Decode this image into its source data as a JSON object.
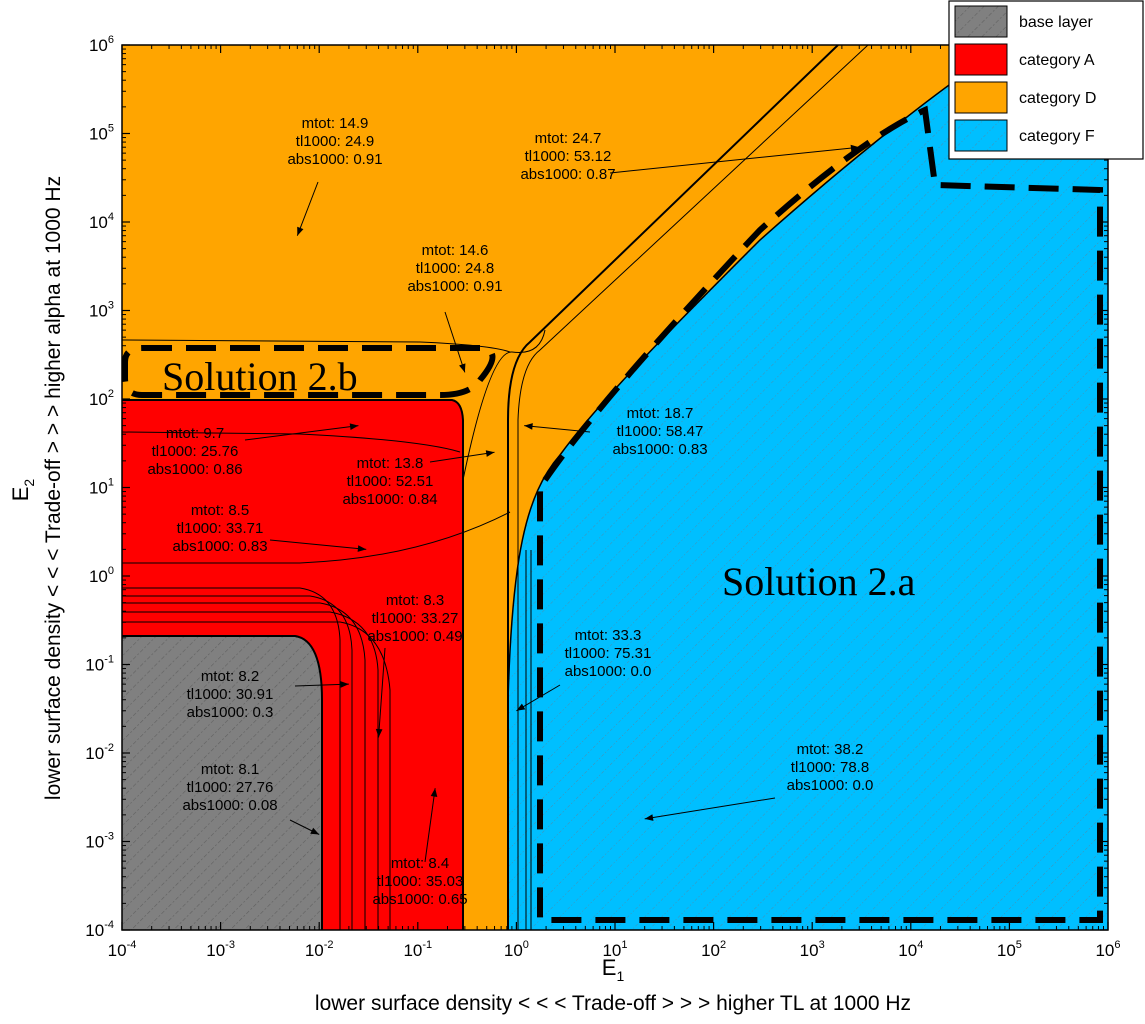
{
  "chart_data": {
    "type": "area",
    "title": "",
    "xlabel": "E",
    "xlabel_sub": "1",
    "xlabel_desc": "lower surface density < < <  Trade-off > > >  higher TL at 1000 Hz",
    "ylabel": "E",
    "ylabel_sub": "2",
    "ylabel_desc": "lower surface density < < <  Trade-off > > >  higher alpha at 1000 Hz",
    "x_scale": "log",
    "y_scale": "log",
    "xlim": [
      0.0001,
      1000000
    ],
    "ylim": [
      0.0001,
      1000000
    ],
    "x_ticks": [
      {
        "base": "10",
        "exp": "-4"
      },
      {
        "base": "10",
        "exp": "-3"
      },
      {
        "base": "10",
        "exp": "-2"
      },
      {
        "base": "10",
        "exp": "-1"
      },
      {
        "base": "10",
        "exp": "0"
      },
      {
        "base": "10",
        "exp": "1"
      },
      {
        "base": "10",
        "exp": "2"
      },
      {
        "base": "10",
        "exp": "3"
      },
      {
        "base": "10",
        "exp": "4"
      },
      {
        "base": "10",
        "exp": "5"
      },
      {
        "base": "10",
        "exp": "6"
      }
    ],
    "y_ticks": [
      {
        "base": "10",
        "exp": "-4"
      },
      {
        "base": "10",
        "exp": "-3"
      },
      {
        "base": "10",
        "exp": "-2"
      },
      {
        "base": "10",
        "exp": "-1"
      },
      {
        "base": "10",
        "exp": "0"
      },
      {
        "base": "10",
        "exp": "1"
      },
      {
        "base": "10",
        "exp": "2"
      },
      {
        "base": "10",
        "exp": "3"
      },
      {
        "base": "10",
        "exp": "4"
      },
      {
        "base": "10",
        "exp": "5"
      },
      {
        "base": "10",
        "exp": "6"
      }
    ],
    "grid": false,
    "legend_position": "top-right",
    "legend": [
      {
        "label": "base layer",
        "color": "#808080",
        "hatched": true
      },
      {
        "label": "category A",
        "color": "#ff0000",
        "hatched": false
      },
      {
        "label": "category D",
        "color": "#ffa500",
        "hatched": false
      },
      {
        "label": "category F",
        "color": "#00bfff",
        "hatched": true
      }
    ],
    "regions": [
      {
        "label": "base layer",
        "x_max": 0.012,
        "y_max": 0.2
      },
      {
        "label": "category A",
        "x_max": 0.3,
        "y_max": 100
      },
      {
        "label": "category F",
        "x_min": 1.2,
        "boundary": "upper-left edge follows roughly E2 ≈ E1 up to the top right corner"
      }
    ],
    "annotations": [
      {
        "lines": [
          "mtot: 14.9",
          "tl1000: 24.9",
          "abs1000: 0.91"
        ],
        "point": [
          0.006,
          7000
        ]
      },
      {
        "lines": [
          "mtot: 24.7",
          "tl1000: 53.12",
          "abs1000: 0.87"
        ],
        "point": [
          3000,
          70000
        ]
      },
      {
        "lines": [
          "mtot: 14.6",
          "tl1000: 24.8",
          "abs1000: 0.91"
        ],
        "point": [
          0.3,
          200
        ]
      },
      {
        "lines": [
          "mtot: 9.7",
          "tl1000: 25.76",
          "abs1000: 0.86"
        ],
        "point": [
          0.025,
          50
        ]
      },
      {
        "lines": [
          "mtot: 13.8",
          "tl1000: 52.51",
          "abs1000: 0.84"
        ],
        "point": [
          0.6,
          25
        ]
      },
      {
        "lines": [
          "mtot: 18.7",
          "tl1000: 58.47",
          "abs1000: 0.83"
        ],
        "point": [
          1.2,
          50
        ]
      },
      {
        "lines": [
          "mtot: 8.5",
          "tl1000: 33.71",
          "abs1000: 0.83"
        ],
        "point": [
          0.03,
          2
        ]
      },
      {
        "lines": [
          "mtot: 8.3",
          "tl1000: 33.27",
          "abs1000: 0.49"
        ],
        "point": [
          0.04,
          0.015
        ]
      },
      {
        "lines": [
          "mtot: 8.2",
          "tl1000: 30.91",
          "abs1000: 0.3"
        ],
        "point": [
          0.02,
          0.06
        ]
      },
      {
        "lines": [
          "mtot: 33.3",
          "tl1000: 75.31",
          "abs1000: 0.0"
        ],
        "point": [
          1.0,
          0.03
        ]
      },
      {
        "lines": [
          "mtot: 8.1",
          "tl1000: 27.76",
          "abs1000: 0.08"
        ],
        "point": [
          0.01,
          0.0012
        ]
      },
      {
        "lines": [
          "mtot: 38.2",
          "tl1000: 78.8",
          "abs1000: 0.0"
        ],
        "point": [
          20,
          0.0018
        ]
      },
      {
        "lines": [
          "mtot: 8.4",
          "tl1000: 35.03",
          "abs1000: 0.65"
        ],
        "point": [
          0.15,
          0.004
        ]
      }
    ],
    "solutions": [
      {
        "label": "Solution 2.a",
        "x_range": [
          1.5,
          500000
        ],
        "y_range": [
          0.0001,
          100000
        ]
      },
      {
        "label": "Solution 2.b",
        "x_range": [
          0.0001,
          0.8
        ],
        "y_range": [
          100,
          300
        ]
      }
    ]
  }
}
